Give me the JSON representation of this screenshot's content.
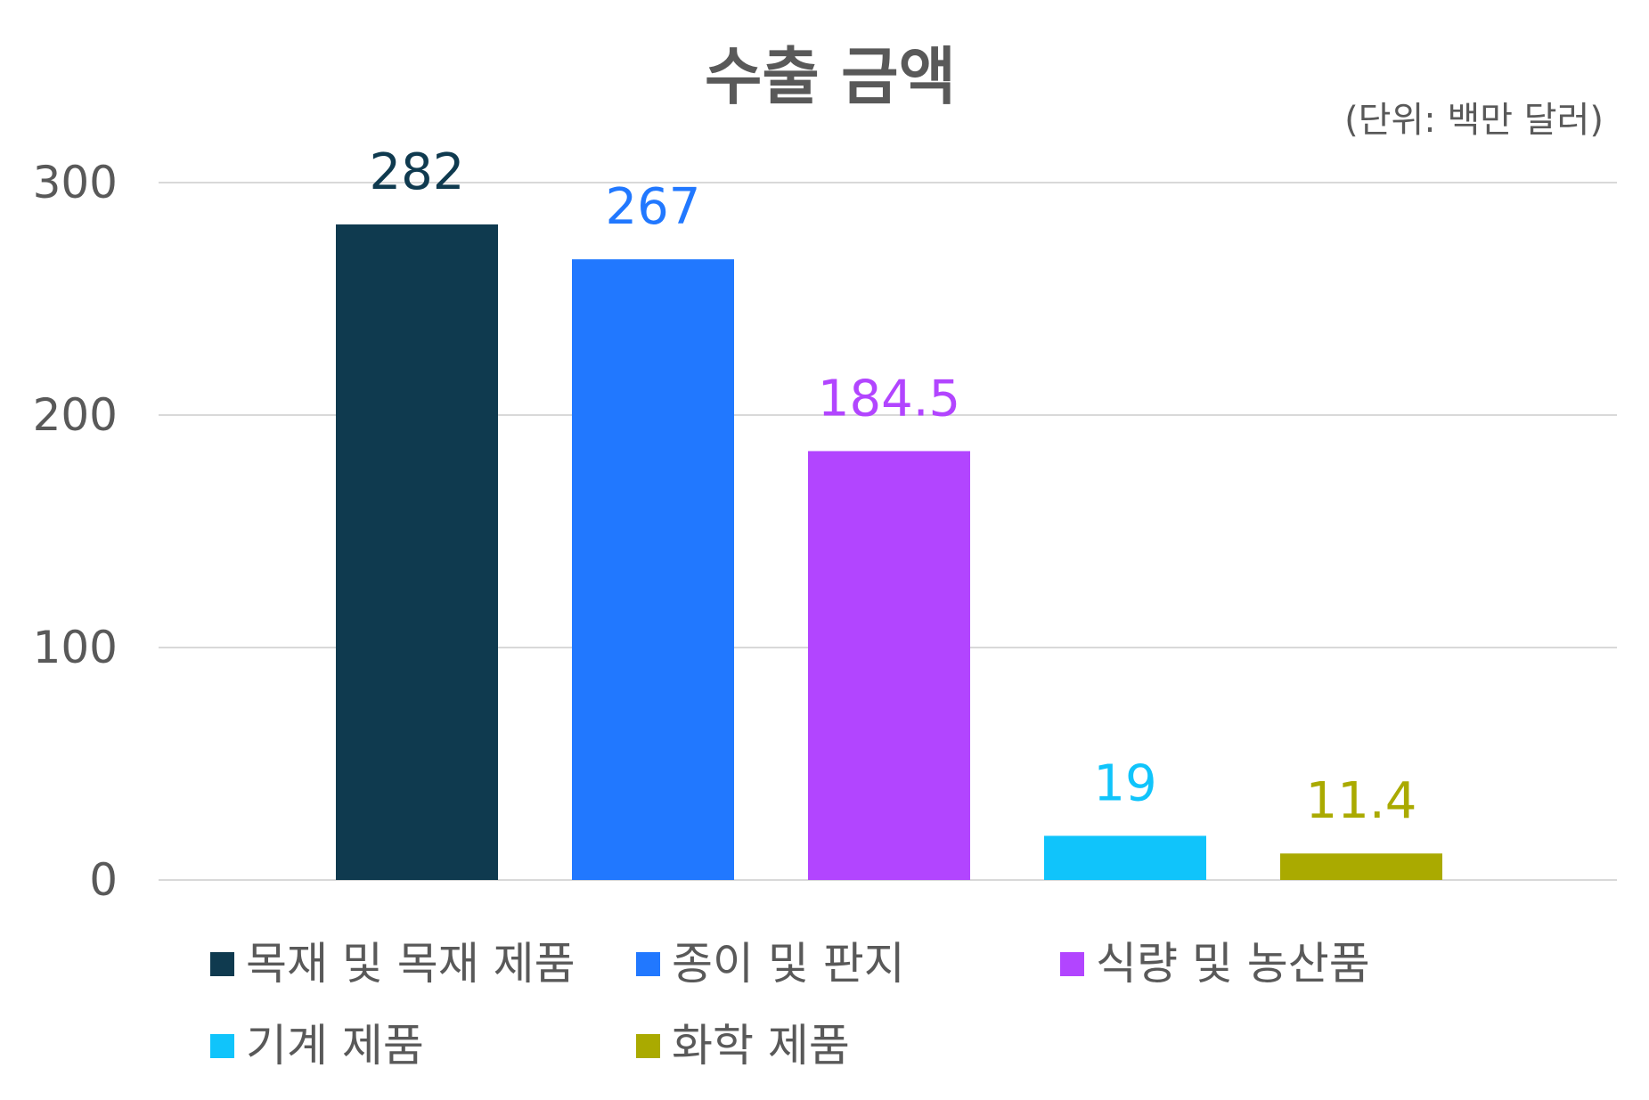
{
  "chart_data": {
    "type": "bar",
    "title": "수출 금액",
    "unit_note": "(단위: 백만 달러)",
    "categories": [
      "목재 및 목재 제품",
      "종이 및 판지",
      "식량 및 농산품",
      "기계 제품",
      "화학 제품"
    ],
    "values": [
      282,
      267,
      184.5,
      19,
      11.4
    ],
    "value_labels": [
      "282",
      "267",
      "184.5",
      "19",
      "11.4"
    ],
    "colors": [
      "#0f3a4f",
      "#2178ff",
      "#b245ff",
      "#10c4fb",
      "#aaaa00"
    ],
    "ylim": [
      0,
      300
    ],
    "yticks": [
      0,
      100,
      200,
      300
    ],
    "ytick_labels": [
      "0",
      "100",
      "200",
      "300"
    ],
    "grid": true,
    "legend_position": "bottom"
  }
}
